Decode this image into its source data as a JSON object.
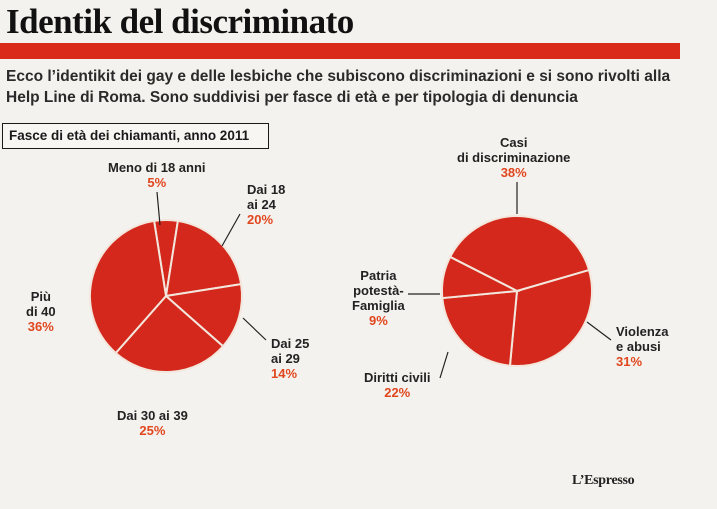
{
  "header": {
    "title": "Identik del discriminato",
    "intro": "Ecco l’identikit dei gay e delle lesbiche che subiscono discriminazioni e si sono rivolti alla Help Line di Roma. Sono suddivisi per fasce di età e per tipologia di denuncia"
  },
  "footer": {
    "logo": "L’Espresso"
  },
  "colors": {
    "accent": "#d92a1c",
    "pie_fill": "#d3281b",
    "percent_text": "#e0471f"
  },
  "chart_data": [
    {
      "type": "pie",
      "title": "Fasce di età dei chiamanti, anno 2011",
      "slices": [
        {
          "name": "Meno di 18 anni",
          "value": 5,
          "label": "5%"
        },
        {
          "name": "Dai 18 ai 24",
          "value": 20,
          "label": "20%"
        },
        {
          "name": "Dai 25 ai 29",
          "value": 14,
          "label": "14%"
        },
        {
          "name": "Dai 30 ai 39",
          "value": 25,
          "label": "25%"
        },
        {
          "name": "Più di 40",
          "value": 36,
          "label": "36%"
        }
      ]
    },
    {
      "type": "pie",
      "title": "",
      "slices": [
        {
          "name": "Casi di discriminazione",
          "value": 38,
          "label": "38%"
        },
        {
          "name": "Violenza e abusi",
          "value": 31,
          "label": "31%"
        },
        {
          "name": "Diritti civili",
          "value": 22,
          "label": "22%"
        },
        {
          "name": "Patria potestà-Famiglia",
          "value": 9,
          "label": "9%"
        }
      ]
    }
  ],
  "labels": {
    "age": {
      "under18": {
        "text": "Meno di 18 anni",
        "pct": "5%"
      },
      "a18_24": {
        "line1": "Dai 18",
        "line2": "ai 24",
        "pct": "20%"
      },
      "a25_29": {
        "line1": "Dai 25",
        "line2": "ai 29",
        "pct": "14%"
      },
      "a30_39": {
        "text": "Dai 30 ai 39",
        "pct": "25%"
      },
      "over40": {
        "line1": "Più",
        "line2": "di 40",
        "pct": "36%"
      }
    },
    "type": {
      "casi": {
        "line1": "Casi",
        "line2": "di discriminazione",
        "pct": "38%"
      },
      "violenza": {
        "line1": "Violenza",
        "line2": "e abusi",
        "pct": "31%"
      },
      "diritti": {
        "text": "Diritti civili",
        "pct": "22%"
      },
      "patria": {
        "line1": "Patria",
        "line2": "potestà-",
        "line3": "Famiglia",
        "pct": "9%"
      }
    }
  }
}
